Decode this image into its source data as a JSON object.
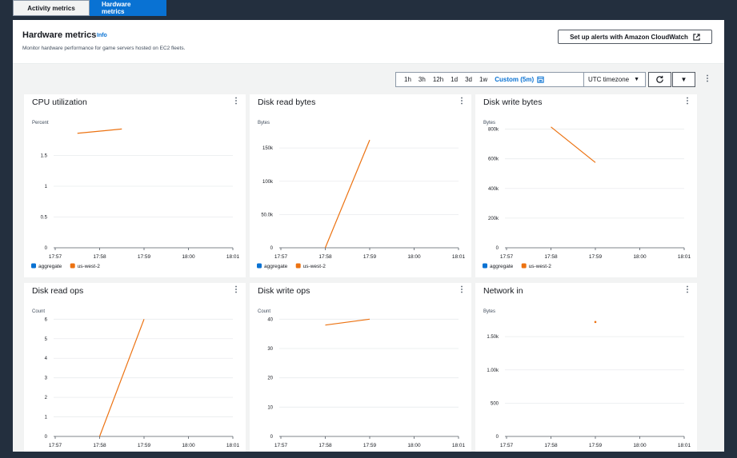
{
  "tabs": [
    {
      "label": "Activity metrics",
      "active": false
    },
    {
      "label": "Hardware metrics",
      "active": true
    }
  ],
  "header": {
    "title": "Hardware metrics",
    "info": "Info",
    "description": "Monitor hardware performance for game servers hosted on EC2 fleets.",
    "cloudwatch_button": "Set up alerts with Amazon CloudWatch"
  },
  "toolbar": {
    "ranges": [
      "1h",
      "3h",
      "12h",
      "1d",
      "3d",
      "1w"
    ],
    "selected_range": "Custom (5m)",
    "timezone": "UTC timezone"
  },
  "colors": {
    "aggregate": "#0972d3",
    "us_west_2": "#ec7211"
  },
  "chart_data": [
    {
      "type": "line",
      "title": "CPU utilization",
      "ylabel": "Percent",
      "x": [
        "17:57",
        "17:58",
        "17:59",
        "18:00",
        "18:01"
      ],
      "ylim": [
        0,
        2
      ],
      "yticks": [
        "0",
        "0.5",
        "1",
        "1.5"
      ],
      "ytick_values": [
        0,
        0.5,
        1,
        1.5
      ],
      "series": [
        {
          "name": "us-west-2",
          "points": [
            [
              0.5,
              1.86
            ],
            [
              1.5,
              1.93
            ]
          ]
        }
      ],
      "legend": [
        "aggregate",
        "us-west-2"
      ]
    },
    {
      "type": "line",
      "title": "Disk read bytes",
      "ylabel": "Bytes",
      "x": [
        "17:57",
        "17:58",
        "17:59",
        "18:00",
        "18:01"
      ],
      "ylim": [
        0,
        185000
      ],
      "yticks": [
        "0",
        "50.0k",
        "100k",
        "150k"
      ],
      "ytick_values": [
        0,
        50000,
        100000,
        150000
      ],
      "series": [
        {
          "name": "us-west-2",
          "points": [
            [
              1,
              0
            ],
            [
              2,
              162000
            ]
          ]
        }
      ],
      "legend": [
        "aggregate",
        "us-west-2"
      ]
    },
    {
      "type": "line",
      "title": "Disk write bytes",
      "ylabel": "Bytes",
      "x": [
        "17:57",
        "17:58",
        "17:59",
        "18:00",
        "18:01"
      ],
      "ylim": [
        0,
        830000
      ],
      "yticks": [
        "0",
        "200k",
        "400k",
        "600k",
        "800k"
      ],
      "ytick_values": [
        0,
        200000,
        400000,
        600000,
        800000
      ],
      "series": [
        {
          "name": "us-west-2",
          "points": [
            [
              1,
              815000
            ],
            [
              2,
              575000
            ]
          ]
        }
      ],
      "legend": [
        "aggregate",
        "us-west-2"
      ]
    },
    {
      "type": "line",
      "title": "Disk read ops",
      "ylabel": "Count",
      "x": [
        "17:57",
        "17:58",
        "17:59",
        "18:00",
        "18:01"
      ],
      "ylim": [
        0,
        6.3
      ],
      "yticks": [
        "0",
        "1",
        "2",
        "3",
        "4",
        "5",
        "6"
      ],
      "ytick_values": [
        0,
        1,
        2,
        3,
        4,
        5,
        6
      ],
      "series": [
        {
          "name": "us-west-2",
          "points": [
            [
              1,
              0
            ],
            [
              2,
              6
            ]
          ]
        }
      ],
      "legend": []
    },
    {
      "type": "line",
      "title": "Disk write ops",
      "ylabel": "Count",
      "x": [
        "17:57",
        "17:58",
        "17:59",
        "18:00",
        "18:01"
      ],
      "ylim": [
        0,
        42
      ],
      "yticks": [
        "0",
        "10",
        "20",
        "30",
        "40"
      ],
      "ytick_values": [
        0,
        10,
        20,
        30,
        40
      ],
      "series": [
        {
          "name": "us-west-2",
          "points": [
            [
              1,
              38
            ],
            [
              2,
              40
            ]
          ]
        }
      ],
      "legend": []
    },
    {
      "type": "scatter",
      "title": "Network in",
      "ylabel": "Bytes",
      "x": [
        "17:57",
        "17:58",
        "17:59",
        "18:00",
        "18:01"
      ],
      "ylim": [
        0,
        1850
      ],
      "yticks": [
        "0",
        "500",
        "1.00k",
        "1.50k"
      ],
      "ytick_values": [
        0,
        500,
        1000,
        1500
      ],
      "series": [
        {
          "name": "us-west-2",
          "points": [
            [
              2,
              1720
            ]
          ]
        }
      ],
      "legend": []
    }
  ]
}
